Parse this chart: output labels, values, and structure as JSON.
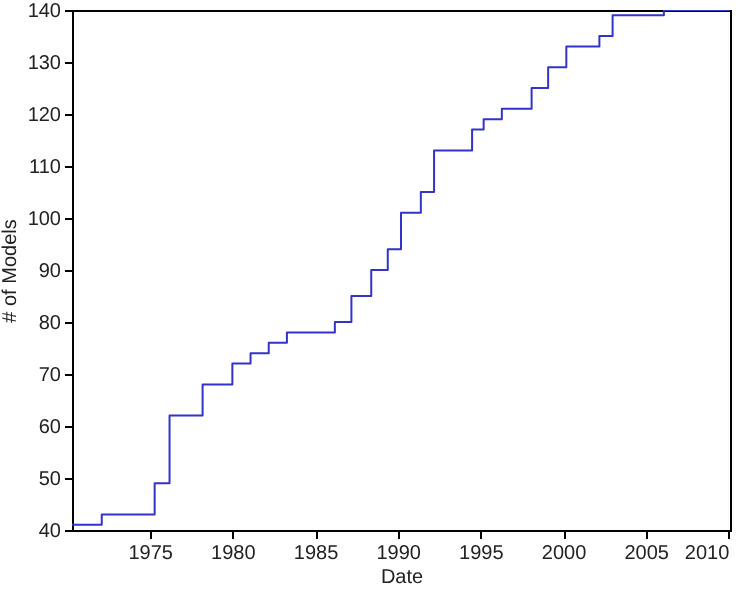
{
  "chart_data": {
    "type": "step",
    "xlabel": "Date",
    "ylabel": "# of Models",
    "x": [
      1970.3,
      1972.1,
      1975.3,
      1976.2,
      1978.2,
      1980.0,
      1981.1,
      1982.2,
      1983.3,
      1986.2,
      1987.2,
      1988.4,
      1989.4,
      1990.2,
      1991.4,
      1992.2,
      1994.5,
      1995.2,
      1996.3,
      1998.1,
      1999.1,
      2000.2,
      2002.2,
      2003.0,
      2006.1,
      2010.1
    ],
    "series": [
      {
        "color": "#3333cc",
        "values": [
          41,
          43,
          49,
          62,
          68,
          72,
          74,
          76,
          78,
          80,
          85,
          90,
          94,
          101,
          105,
          113,
          117,
          119,
          121,
          125,
          129,
          133,
          135,
          139,
          140,
          140
        ]
      }
    ],
    "xlim": [
      1970.3,
      2010.1
    ],
    "xticks": [
      1975,
      1980,
      1985,
      1990,
      1995,
      2000,
      2005,
      2010
    ],
    "ylim": [
      40,
      140
    ],
    "yticks": [
      40,
      50,
      60,
      70,
      80,
      90,
      100,
      110,
      120,
      130,
      140
    ],
    "grid": false
  }
}
